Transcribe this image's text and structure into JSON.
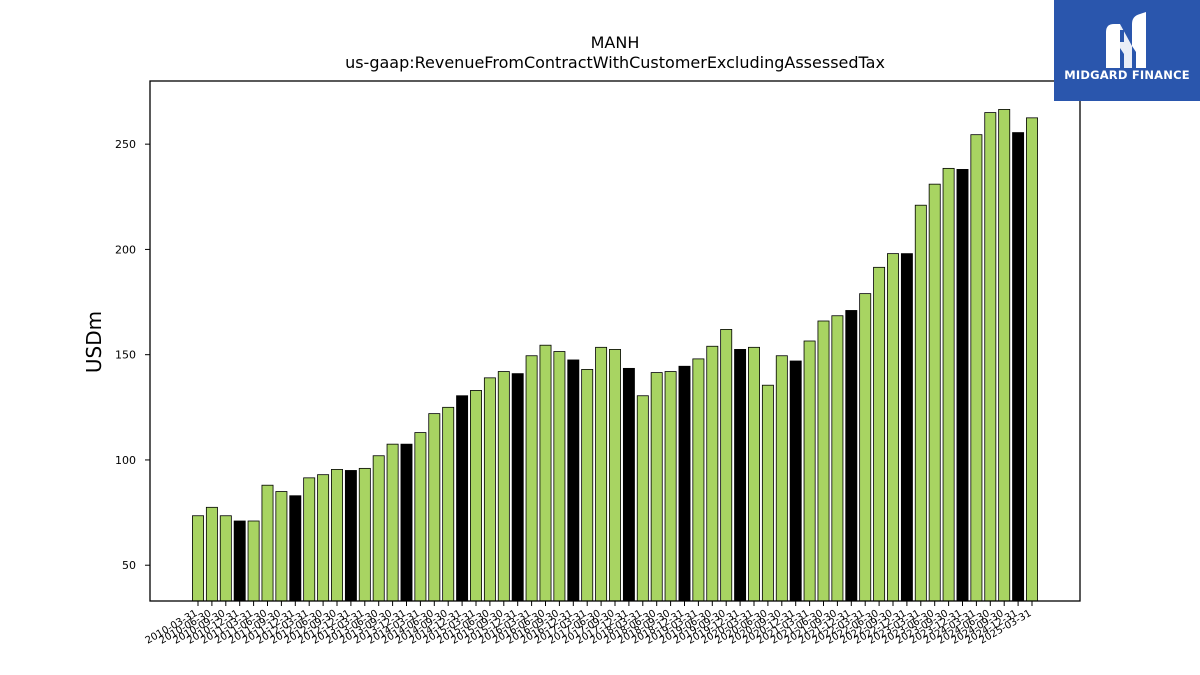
{
  "brand": {
    "name": "MIDGARD FINANCE",
    "logo_icon": "midgard-m-logo-icon",
    "bg_color": "#2a56ad"
  },
  "chart_data": {
    "type": "bar",
    "title": "MANH",
    "subtitle": "us-gaap:RevenueFromContractWithCustomerExcludingAssessedTax",
    "xlabel": "",
    "ylabel": "USDm",
    "ylim": [
      33,
      280
    ],
    "yticks": [
      50,
      100,
      150,
      200,
      250
    ],
    "grid": false,
    "colors": {
      "quarter": "#a8d462",
      "fiscal_year_end": "#000000",
      "edge": "#000000"
    },
    "categories": [
      "2010-03-31",
      "2010-06-30",
      "2010-09-30",
      "2010-12-31",
      "2011-03-31",
      "2011-06-30",
      "2011-09-30",
      "2011-12-31",
      "2012-03-31",
      "2012-06-30",
      "2012-09-30",
      "2012-12-31",
      "2013-03-31",
      "2013-06-30",
      "2013-09-30",
      "2013-12-31",
      "2014-03-31",
      "2014-06-30",
      "2014-09-30",
      "2014-12-31",
      "2015-03-31",
      "2015-06-30",
      "2015-09-30",
      "2015-12-31",
      "2016-03-31",
      "2016-06-30",
      "2016-09-30",
      "2016-12-31",
      "2017-03-31",
      "2017-06-30",
      "2017-09-30",
      "2017-12-31",
      "2018-03-31",
      "2018-06-30",
      "2018-09-30",
      "2018-12-31",
      "2019-03-31",
      "2019-06-30",
      "2019-09-30",
      "2019-12-31",
      "2020-03-31",
      "2020-06-30",
      "2020-09-30",
      "2020-12-31",
      "2021-03-31",
      "2021-06-30",
      "2021-09-30",
      "2021-12-31",
      "2022-03-31",
      "2022-06-30",
      "2022-09-30",
      "2022-12-31",
      "2023-03-31",
      "2023-06-30",
      "2023-09-30",
      "2023-12-31",
      "2024-03-31",
      "2024-06-30",
      "2024-09-30",
      "2024-12-31",
      "2025-03-31"
    ],
    "values": [
      73.5,
      77.5,
      73.5,
      71.0,
      71.0,
      88.0,
      85.0,
      83.0,
      91.5,
      93.0,
      95.5,
      95.0,
      96.0,
      102.0,
      107.5,
      107.5,
      113.0,
      122.0,
      125.0,
      130.5,
      133.0,
      139.0,
      142.0,
      141.0,
      149.5,
      154.5,
      151.5,
      147.5,
      143.0,
      153.5,
      152.5,
      143.5,
      130.5,
      141.5,
      142.0,
      144.5,
      148.0,
      154.0,
      162.0,
      152.5,
      153.5,
      135.5,
      149.5,
      147.0,
      156.5,
      166.0,
      168.5,
      171.0,
      179.0,
      191.5,
      198.0,
      198.0,
      221.0,
      231.0,
      238.5,
      238.0,
      254.5,
      265.0,
      266.5,
      255.5,
      262.5
    ],
    "highlight": [
      false,
      false,
      false,
      true,
      false,
      false,
      false,
      true,
      false,
      false,
      false,
      true,
      false,
      false,
      false,
      true,
      false,
      false,
      false,
      true,
      false,
      false,
      false,
      true,
      false,
      false,
      false,
      true,
      false,
      false,
      false,
      true,
      false,
      false,
      false,
      true,
      false,
      false,
      false,
      true,
      false,
      false,
      false,
      true,
      false,
      false,
      false,
      true,
      false,
      false,
      false,
      true,
      false,
      false,
      false,
      true,
      false,
      false,
      false,
      true,
      false
    ]
  }
}
